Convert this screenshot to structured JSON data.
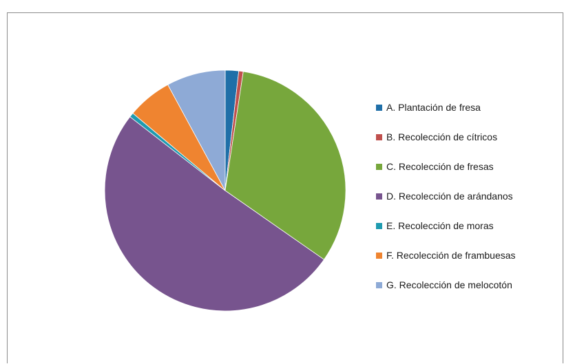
{
  "chart_data": {
    "type": "pie",
    "title": "",
    "slices": [
      {
        "label": "A. Plantación de fresa",
        "value": 1.8,
        "color": "#1f6fa8"
      },
      {
        "label": "B. Recolección de cítricos",
        "value": 0.6,
        "color": "#c0504d"
      },
      {
        "label": "C. Recolección de fresas",
        "value": 32.3,
        "color": "#77a73c"
      },
      {
        "label": "D. Recolección de arándanos",
        "value": 50.8,
        "color": "#77548e"
      },
      {
        "label": "E. Recolección de moras",
        "value": 0.6,
        "color": "#1f9bb0"
      },
      {
        "label": "F. Recolección de frambuesas",
        "value": 6.0,
        "color": "#ef8430"
      },
      {
        "label": "G. Recolección de melocotón",
        "value": 7.9,
        "color": "#8eaad6"
      }
    ],
    "legend_position": "right",
    "start_angle_deg": 0,
    "direction": "clockwise"
  }
}
